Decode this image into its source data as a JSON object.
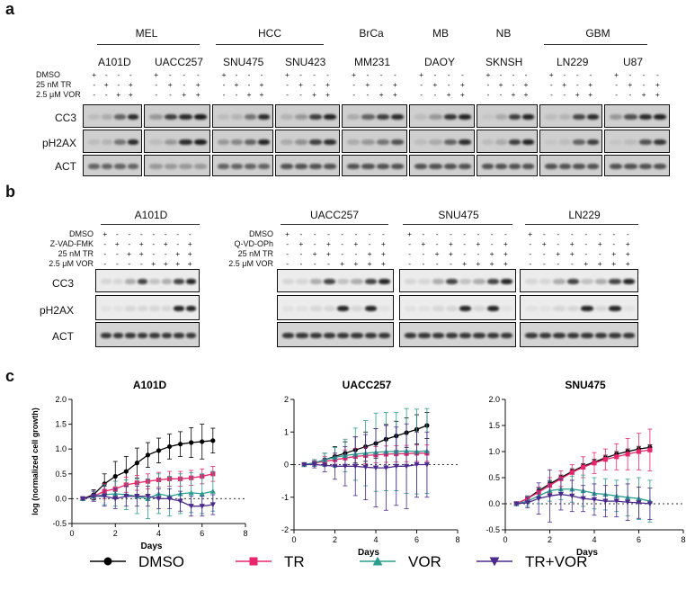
{
  "panel_a": {
    "letter": "a",
    "groups": [
      {
        "name": "MEL",
        "lines": [
          108,
          222
        ]
      },
      {
        "name": "HCC",
        "lines": [
          240,
          360
        ]
      },
      {
        "name": "BrCa"
      },
      {
        "name": "MB"
      },
      {
        "name": "NB"
      },
      {
        "name": "GBM",
        "lines": [
          605,
          720
        ]
      }
    ],
    "cell_lines": [
      "A101D",
      "UACC257",
      "SNU475",
      "SNU423",
      "MM231",
      "DAOY",
      "SKNSH",
      "LN229",
      "U87"
    ],
    "treatments": [
      "DMSO",
      "25 nM TR",
      "2.5 μM VOR"
    ],
    "row_labels": [
      "CC3",
      "pH2AX",
      "ACT"
    ]
  },
  "panel_b": {
    "letter": "b",
    "groups": [
      "A101D",
      "UACC257",
      "SNU475",
      "LN229"
    ],
    "treatments_left": [
      "DMSO",
      "Z-VAD-FMK",
      "25 nM TR",
      "2.5 μM VOR"
    ],
    "treatments_right": [
      "DMSO",
      "Q-VD-OPh",
      "25 nM TR",
      "2.5 μM VOR"
    ],
    "row_labels": [
      "CC3",
      "pH2AX",
      "ACT"
    ],
    "pm_pattern": [
      [
        "+",
        "-",
        "-",
        "-",
        "-",
        "-",
        "-",
        "-"
      ],
      [
        "-",
        "+",
        "-",
        "+",
        "-",
        "+",
        "-",
        "+"
      ],
      [
        "-",
        "-",
        "+",
        "+",
        "-",
        "-",
        "+",
        "+"
      ],
      [
        "-",
        "-",
        "-",
        "-",
        "+",
        "+",
        "+",
        "+"
      ]
    ]
  },
  "panel_c": {
    "letter": "c",
    "ylabel": "log (normalized cell growth)",
    "xlabel": "Days",
    "legend": [
      {
        "name": "DMSO",
        "color": "#000000",
        "marker": "circle"
      },
      {
        "name": "TR",
        "color": "#e8266b",
        "marker": "square"
      },
      {
        "name": "VOR",
        "color": "#2a9d8f",
        "marker": "triangle-up"
      },
      {
        "name": "TR+VOR",
        "color": "#4b2a8c",
        "marker": "triangle-down"
      }
    ]
  },
  "chart_data": [
    {
      "type": "line",
      "title": "A101D",
      "xlabel": "Days",
      "ylabel": "log (normalized cell growth)",
      "xlim": [
        0,
        8
      ],
      "ylim": [
        -0.5,
        2.0
      ],
      "xticks": [
        0,
        2,
        4,
        6,
        8
      ],
      "yticks": [
        -0.5,
        0.0,
        0.5,
        1.0,
        1.5,
        2.0
      ],
      "x": [
        0.5,
        1,
        1.5,
        2,
        2.5,
        3,
        3.5,
        4,
        4.5,
        5,
        5.5,
        6,
        6.5
      ],
      "series": [
        {
          "name": "DMSO",
          "values": [
            0.0,
            0.08,
            0.3,
            0.45,
            0.55,
            0.72,
            0.88,
            0.97,
            1.05,
            1.1,
            1.13,
            1.15,
            1.17
          ],
          "err": [
            0.02,
            0.1,
            0.2,
            0.3,
            0.3,
            0.3,
            0.25,
            0.25,
            0.25,
            0.25,
            0.3,
            0.35,
            0.25
          ]
        },
        {
          "name": "TR",
          "values": [
            0.0,
            0.05,
            0.15,
            0.2,
            0.28,
            0.32,
            0.35,
            0.38,
            0.4,
            0.4,
            0.42,
            0.45,
            0.5
          ],
          "err": [
            0.02,
            0.1,
            0.15,
            0.15,
            0.15,
            0.15,
            0.15,
            0.15,
            0.15,
            0.15,
            0.15,
            0.15,
            0.15
          ]
        },
        {
          "name": "VOR",
          "values": [
            0.0,
            0.05,
            0.08,
            0.1,
            0.08,
            0.05,
            0.0,
            0.1,
            0.05,
            0.1,
            0.12,
            0.1,
            0.15
          ],
          "err": [
            0.02,
            0.1,
            0.2,
            0.25,
            0.3,
            0.35,
            0.4,
            0.4,
            0.4,
            0.4,
            0.4,
            0.4,
            0.4
          ]
        },
        {
          "name": "TR+VOR",
          "values": [
            0.0,
            0.05,
            0.05,
            0.0,
            0.05,
            0.05,
            0.05,
            0.0,
            0.0,
            -0.05,
            -0.15,
            -0.15,
            -0.12
          ],
          "err": [
            0.02,
            0.1,
            0.2,
            0.2,
            0.2,
            0.2,
            0.2,
            0.2,
            0.2,
            0.2,
            0.2,
            0.2,
            0.2
          ]
        }
      ]
    },
    {
      "type": "line",
      "title": "UACC257",
      "xlabel": "Days",
      "ylabel": "",
      "xlim": [
        0,
        8
      ],
      "ylim": [
        -2,
        2
      ],
      "xticks": [
        0,
        2,
        4,
        6,
        8
      ],
      "yticks": [
        -2,
        -1,
        0,
        1,
        2
      ],
      "x": [
        0.5,
        1,
        1.5,
        2,
        2.5,
        3,
        3.5,
        4,
        4.5,
        5,
        5.5,
        6,
        6.5
      ],
      "series": [
        {
          "name": "DMSO",
          "values": [
            0.0,
            0.05,
            0.15,
            0.25,
            0.35,
            0.45,
            0.55,
            0.65,
            0.78,
            0.88,
            0.98,
            1.08,
            1.2
          ],
          "err": [
            0.02,
            0.1,
            0.2,
            0.3,
            0.35,
            0.4,
            0.45,
            0.45,
            0.45,
            0.45,
            0.45,
            0.45,
            0.4
          ]
        },
        {
          "name": "TR",
          "values": [
            0.0,
            0.05,
            0.1,
            0.15,
            0.2,
            0.25,
            0.28,
            0.3,
            0.32,
            0.33,
            0.34,
            0.35,
            0.35
          ],
          "err": [
            0.02,
            0.1,
            0.15,
            0.2,
            0.25,
            0.25,
            0.25,
            0.25,
            0.25,
            0.25,
            0.25,
            0.25,
            0.25
          ]
        },
        {
          "name": "VOR",
          "values": [
            0.0,
            0.05,
            0.15,
            0.22,
            0.28,
            0.32,
            0.35,
            0.38,
            0.4,
            0.4,
            0.42,
            0.4,
            0.42
          ],
          "err": [
            0.02,
            0.1,
            0.2,
            0.3,
            0.5,
            0.8,
            1.0,
            1.2,
            1.2,
            1.2,
            1.3,
            1.3,
            1.3
          ]
        },
        {
          "name": "TR+VOR",
          "values": [
            0.0,
            0.0,
            -0.02,
            -0.05,
            -0.05,
            -0.05,
            -0.08,
            -0.1,
            -0.1,
            -0.05,
            -0.05,
            0.0,
            0.0
          ],
          "err": [
            0.02,
            0.1,
            0.2,
            0.4,
            0.6,
            0.9,
            1.0,
            1.2,
            1.3,
            1.2,
            1.3,
            1.0,
            1.0
          ]
        }
      ]
    },
    {
      "type": "line",
      "title": "SNU475",
      "xlabel": "Days",
      "ylabel": "",
      "xlim": [
        0,
        8
      ],
      "ylim": [
        -0.5,
        2.0
      ],
      "xticks": [
        0,
        2,
        4,
        6,
        8
      ],
      "yticks": [
        -0.5,
        0.0,
        0.5,
        1.0,
        1.5,
        2.0
      ],
      "x": [
        0.5,
        1,
        1.5,
        2,
        2.5,
        3,
        3.5,
        4,
        4.5,
        5,
        5.5,
        6,
        6.5
      ],
      "series": [
        {
          "name": "DMSO",
          "values": [
            0.0,
            0.1,
            0.25,
            0.38,
            0.5,
            0.62,
            0.72,
            0.8,
            0.88,
            0.95,
            1.0,
            1.05,
            1.08
          ],
          "err": [
            0.02,
            0.05,
            0.05,
            0.05,
            0.05,
            0.05,
            0.05,
            0.05,
            0.05,
            0.05,
            0.05,
            0.05,
            0.05
          ]
        },
        {
          "name": "TR",
          "values": [
            0.0,
            0.1,
            0.22,
            0.35,
            0.48,
            0.6,
            0.7,
            0.78,
            0.85,
            0.9,
            0.95,
            1.0,
            1.03
          ],
          "err": [
            0.02,
            0.05,
            0.1,
            0.15,
            0.15,
            0.15,
            0.2,
            0.2,
            0.2,
            0.25,
            0.3,
            0.35,
            0.4
          ]
        },
        {
          "name": "VOR",
          "values": [
            0.0,
            0.05,
            0.15,
            0.25,
            0.28,
            0.28,
            0.25,
            0.2,
            0.18,
            0.15,
            0.12,
            0.1,
            0.05
          ],
          "err": [
            0.02,
            0.1,
            0.15,
            0.2,
            0.2,
            0.25,
            0.3,
            0.3,
            0.3,
            0.3,
            0.35,
            0.4,
            0.4
          ]
        },
        {
          "name": "TR+VOR",
          "values": [
            0.0,
            0.02,
            0.1,
            0.15,
            0.18,
            0.15,
            0.1,
            0.08,
            0.05,
            0.05,
            0.03,
            0.02,
            0.0
          ],
          "err": [
            0.02,
            0.1,
            0.3,
            0.5,
            0.3,
            0.3,
            0.25,
            0.3,
            0.3,
            0.3,
            0.35,
            0.3,
            0.3
          ]
        }
      ]
    }
  ]
}
